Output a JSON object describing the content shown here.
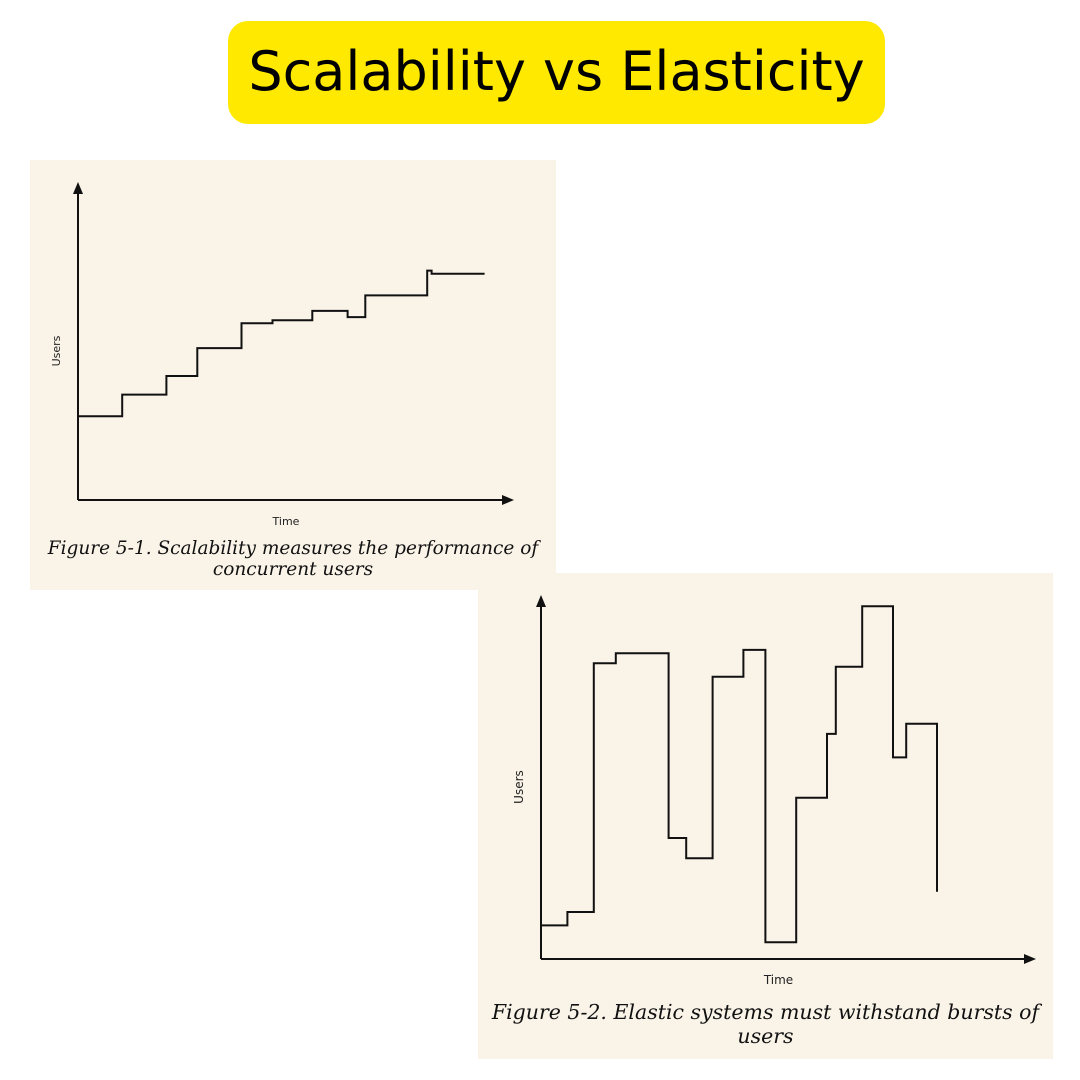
{
  "header": {
    "title": "Scalability vs Elasticity"
  },
  "colors": {
    "banner": "#FFE900",
    "panel_background": "#F9F3E8",
    "line": "#111111"
  },
  "chart_data": [
    {
      "type": "line",
      "step": true,
      "title": "",
      "caption": "Figure 5-1. Scalability measures the performance of concurrent users",
      "caption_lines": [
        "Figure 5-1. Scalability measures the performance of",
        "concurrent users"
      ],
      "xlabel": "Time",
      "ylabel": "Users",
      "xlim": [
        0,
        100
      ],
      "ylim": [
        0,
        100
      ],
      "grid": false,
      "ticks": false,
      "series": [
        {
          "x": [
            0,
            10,
            20,
            27,
            37,
            44,
            53,
            61,
            65,
            79,
            80,
            91,
            92
          ],
          "y": [
            27,
            34,
            40,
            49,
            57,
            58,
            61,
            59,
            66,
            74,
            73,
            73,
            73
          ]
        }
      ]
    },
    {
      "type": "line",
      "step": true,
      "title": "",
      "caption": "Figure 5-2. Elastic systems must withstand bursts of users",
      "caption_lines": [
        "Figure 5-2. Elastic systems must withstand bursts of",
        "users"
      ],
      "xlabel": "Time",
      "ylabel": "Users",
      "xlim": [
        0,
        100
      ],
      "ylim": [
        0,
        100
      ],
      "grid": false,
      "ticks": false,
      "series": [
        {
          "x": [
            0,
            6,
            12,
            17,
            29,
            33,
            39,
            46,
            51,
            57,
            58,
            65,
            65,
            67,
            73,
            80,
            83,
            90,
            90
          ],
          "y": [
            10,
            14,
            88,
            91,
            36,
            30,
            84,
            92,
            5,
            5,
            48,
            67,
            67,
            87,
            105,
            60,
            70,
            25,
            25
          ]
        }
      ]
    }
  ]
}
